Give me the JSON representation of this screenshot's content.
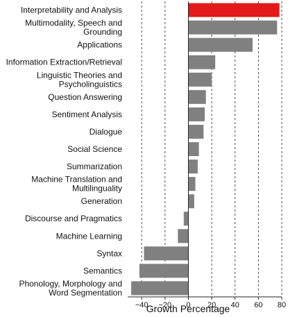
{
  "chart_data": {
    "type": "bar",
    "orientation": "horizontal",
    "xlabel": "Growth Percentage",
    "xlim": [
      -52,
      80
    ],
    "xticks": [
      -40,
      -20,
      0,
      20,
      40,
      60,
      80
    ],
    "xtick_labels": [
      "−40",
      "−20",
      "0",
      "20",
      "40",
      "60",
      "80"
    ],
    "grid": "vertical dashed lines at x ticks",
    "categories": [
      "Interpretability and Analysis",
      "Multimodality, Speech and\nGrounding",
      "Applications",
      "Information Extraction/Retrieval",
      "Linguistic Theories and\nPsycholinguistics",
      "Question Answering",
      "Sentiment Analysis",
      "Dialogue",
      "Social Science",
      "Summarization",
      "Machine Translation and\nMultilinguality",
      "Generation",
      "Discourse and Pragmatics",
      "Machine Learning",
      "Syntax",
      "Semantics",
      "Phonology, Morphology and\nWord Segmentation"
    ],
    "values": [
      78,
      76,
      55,
      23,
      20,
      15,
      14,
      13,
      9,
      8,
      6,
      5,
      -4,
      -9,
      -38,
      -42,
      -49
    ],
    "colors": {
      "highlight": "#e31a1c",
      "default": "#808080"
    },
    "highlight_index": 0
  }
}
